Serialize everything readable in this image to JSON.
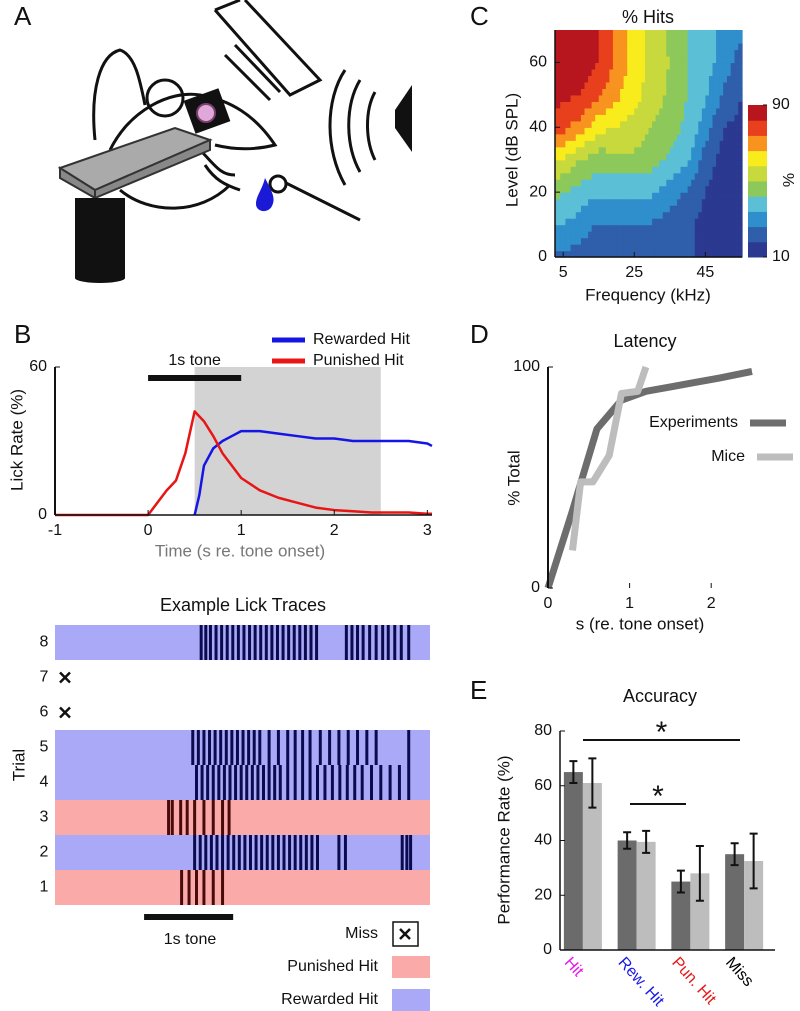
{
  "panel_labels": [
    "A",
    "B",
    "C",
    "D",
    "E"
  ],
  "chart_data": [
    {
      "type": "line",
      "annotation": "1s tone",
      "tone_bar": [
        0,
        1
      ],
      "shaded_region": {
        "x": [
          0.5,
          2.5
        ],
        "color": "#d3d3d3"
      },
      "x_label": "Time (s re. tone onset)",
      "y_label": "Lick Rate (%)",
      "xlim": [
        -1,
        3.05
      ],
      "ylim": [
        0,
        60
      ],
      "xticks": [
        -1,
        0,
        1,
        2,
        3
      ],
      "yticks": [
        0,
        60
      ],
      "series": [
        {
          "name": "Rewarded Hit",
          "color": "#1515e6",
          "x": [
            0.5,
            0.55,
            0.6,
            0.7,
            0.8,
            0.9,
            1.0,
            1.2,
            1.4,
            1.6,
            1.8,
            2.0,
            2.2,
            2.4,
            2.6,
            2.8,
            3.0,
            3.05
          ],
          "values": [
            0,
            8,
            20,
            27,
            30,
            32,
            34,
            34,
            33,
            32,
            31,
            31,
            30,
            30,
            30,
            30,
            29,
            28
          ]
        },
        {
          "name": "Punished Hit",
          "color": "#e81515",
          "x": [
            -1,
            0,
            0.1,
            0.2,
            0.3,
            0.4,
            0.5,
            0.55,
            0.6,
            0.7,
            0.8,
            0.9,
            1.0,
            1.2,
            1.4,
            1.6,
            1.8,
            2.0,
            2.2,
            2.4,
            2.6,
            2.8,
            3.0,
            3.05
          ],
          "values": [
            0,
            0,
            5,
            10,
            14,
            25,
            42,
            40,
            38,
            32,
            25,
            20,
            15,
            10,
            7,
            5,
            3,
            2,
            1.5,
            1,
            1,
            1,
            0.5,
            0.5
          ]
        }
      ]
    },
    {
      "type": "raster",
      "title": "Example Lick Traces",
      "y_label": "Trial",
      "annotation": "1s tone",
      "tone_bar": [
        0,
        1
      ],
      "xlim": [
        -1,
        3.05
      ],
      "categories": [
        "1",
        "2",
        "3",
        "4",
        "5",
        "6",
        "7",
        "8"
      ],
      "series": [
        {
          "name": "Miss",
          "licks": [
            null,
            null,
            null,
            null,
            null,
            [],
            [],
            null
          ]
        },
        {
          "name": "Punished Hit",
          "color": "#fbaaaa",
          "lick_color": "#4a0a0a",
          "licks": [
            [
              0.36,
              0.44,
              0.52,
              0.6,
              0.7,
              0.8
            ],
            null,
            [
              0.22,
              0.26,
              0.35,
              0.42,
              0.5,
              0.6,
              0.7,
              0.8,
              0.87
            ],
            null,
            null,
            null,
            null,
            null
          ]
        },
        {
          "name": "Rewarded Hit",
          "color": "#a9a9f7",
          "lick_color": "#0a0a4e",
          "licks": [
            null,
            [
              0.5,
              0.56,
              0.62,
              0.68,
              0.74,
              0.8,
              0.86,
              0.92,
              0.98,
              1.04,
              1.1,
              1.16,
              1.22,
              1.28,
              1.34,
              1.4,
              1.46,
              1.52,
              1.58,
              1.64,
              1.7,
              1.76,
              1.82,
              2.05,
              2.12,
              2.73,
              2.78,
              2.82
            ],
            null,
            [
              0.52,
              0.58,
              0.64,
              0.7,
              0.76,
              0.82,
              0.88,
              0.94,
              1.0,
              1.06,
              1.12,
              1.18,
              1.24,
              1.3,
              1.36,
              1.42,
              1.5,
              1.58,
              1.66,
              1.74,
              1.82,
              1.9,
              1.98,
              2.06,
              2.14,
              2.22,
              2.3,
              2.4,
              2.5,
              2.6,
              2.7,
              2.8
            ],
            [
              0.48,
              0.54,
              0.6,
              0.66,
              0.72,
              0.78,
              0.84,
              0.9,
              0.96,
              1.02,
              1.08,
              1.14,
              1.2,
              1.3,
              1.4,
              1.5,
              1.58,
              1.66,
              1.74,
              1.85,
              1.95,
              2.05,
              2.15,
              2.25,
              2.35,
              2.45,
              2.8
            ],
            null,
            null,
            [
              0.57,
              0.62,
              0.67,
              0.73,
              0.79,
              0.85,
              0.91,
              0.97,
              1.03,
              1.09,
              1.15,
              1.21,
              1.27,
              1.33,
              1.39,
              1.45,
              1.51,
              1.57,
              1.63,
              1.69,
              1.75,
              1.81,
              2.13,
              2.19,
              2.25,
              2.31,
              2.38,
              2.45,
              2.52,
              2.58,
              2.65,
              2.72,
              2.8
            ]
          ]
        }
      ]
    },
    {
      "type": "heatmap",
      "title": "% Hits",
      "x_label": "Frequency (kHz)",
      "y_label": "Level (dB SPL)",
      "colorbar_label": "%",
      "xlim": [
        2.7,
        55.3
      ],
      "ylim": [
        0,
        70
      ],
      "xticks": [
        5,
        25,
        45
      ],
      "yticks": [
        0,
        20,
        40,
        60
      ],
      "clim": [
        10,
        90
      ],
      "cticks": [
        10,
        90
      ],
      "colors": [
        "#2b3990",
        "#2f5fab",
        "#2f8fcc",
        "#5bc0d6",
        "#8cc85a",
        "#c7d93c",
        "#f9ec1c",
        "#f7931e",
        "#e8401c",
        "#b8161e"
      ],
      "x": [
        5,
        10,
        15,
        20,
        25,
        30,
        35,
        40,
        45,
        50,
        55
      ],
      "y": [
        0,
        10,
        20,
        30,
        40,
        50,
        60,
        70
      ],
      "z": [
        [
          25,
          22,
          20,
          20,
          20,
          20,
          20,
          20,
          15,
          12,
          10
        ],
        [
          35,
          30,
          25,
          25,
          25,
          25,
          22,
          20,
          15,
          12,
          12
        ],
        [
          45,
          38,
          35,
          35,
          35,
          35,
          30,
          25,
          18,
          12,
          12
        ],
        [
          60,
          50,
          45,
          48,
          48,
          45,
          40,
          35,
          22,
          15,
          12
        ],
        [
          80,
          70,
          60,
          58,
          55,
          50,
          45,
          40,
          30,
          18,
          15
        ],
        [
          85,
          82,
          75,
          68,
          60,
          55,
          48,
          42,
          35,
          25,
          18
        ],
        [
          88,
          88,
          82,
          72,
          62,
          55,
          50,
          42,
          38,
          30,
          22
        ],
        [
          90,
          88,
          82,
          72,
          62,
          55,
          48,
          42,
          38,
          32,
          28
        ]
      ]
    },
    {
      "type": "line",
      "title": "Latency",
      "x_label": "s (re. tone onset)",
      "y_label": "% Total",
      "xlim": [
        0,
        2.5
      ],
      "ylim": [
        0,
        100
      ],
      "xticks": [
        0,
        1,
        2
      ],
      "yticks": [
        0,
        100
      ],
      "series": [
        {
          "name": "Experiments",
          "color": "#6d6d6d",
          "x": [
            0,
            0.3,
            0.6,
            0.9,
            1.2,
            1.5,
            1.8,
            2.1,
            2.5
          ],
          "values": [
            0,
            35,
            72,
            85,
            89,
            91,
            93,
            95,
            98
          ]
        },
        {
          "name": "Mice",
          "color": "#bdbdbd",
          "x": [
            0.3,
            0.4,
            0.55,
            0.75,
            0.9,
            1.1,
            1.2
          ],
          "values": [
            17,
            48,
            48,
            60,
            88,
            89,
            100
          ]
        }
      ]
    },
    {
      "type": "bar",
      "title": "Accuracy",
      "y_label": "Performance Rate (%)",
      "ylim": [
        0,
        80
      ],
      "yticks": [
        0,
        20,
        40,
        60,
        80
      ],
      "categories": [
        "Hit",
        "Rew. Hit",
        "Pun. Hit",
        "Miss"
      ],
      "category_colors": [
        "#e619e6",
        "#1a1ae6",
        "#e61919",
        "#000000"
      ],
      "series": [
        {
          "color": "#6b6b6b",
          "values": [
            65,
            40,
            25,
            35
          ],
          "errors": [
            4,
            3,
            4,
            4
          ]
        },
        {
          "color": "#bdbdbd",
          "values": [
            61,
            39.5,
            28,
            32.5
          ],
          "errors": [
            9,
            4,
            10,
            10
          ]
        }
      ],
      "annotations": [
        {
          "text": "*"
        },
        {
          "text": "*"
        }
      ]
    }
  ]
}
